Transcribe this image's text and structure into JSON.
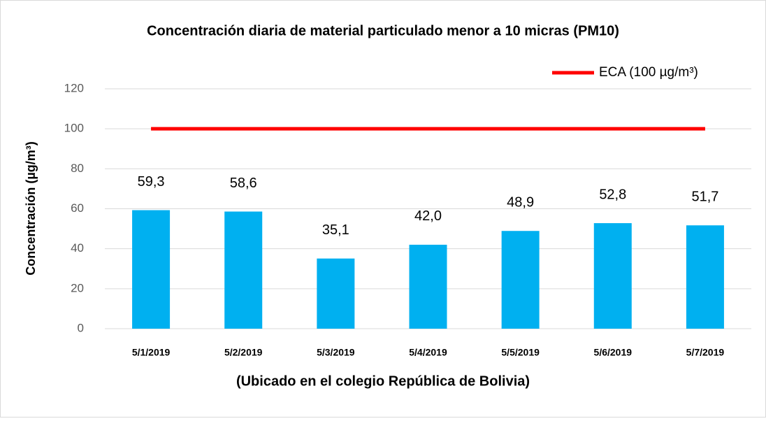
{
  "chart_data": {
    "type": "bar",
    "title": "Concentración diaria de material particulado menor a 10 micras (PM10)",
    "x_label": "(Ubicado en el colegio República de Bolivia)",
    "y_label": "Concentración (µg/m³)",
    "categories": [
      "5/1/2019",
      "5/2/2019",
      "5/3/2019",
      "5/4/2019",
      "5/5/2019",
      "5/6/2019",
      "5/7/2019"
    ],
    "series": [
      {
        "type": "bar",
        "color": "#00b0f0",
        "values": [
          59.3,
          58.6,
          35.1,
          42.0,
          48.9,
          52.8,
          51.7
        ],
        "value_labels": [
          "59,3",
          "58,6",
          "35,1",
          "42,0",
          "48,9",
          "52,8",
          "51,7"
        ]
      },
      {
        "type": "line",
        "name": "ECA (100 µg/m³)",
        "color": "#ff0000",
        "values": [
          100,
          100,
          100,
          100,
          100,
          100,
          100
        ]
      }
    ],
    "ylim": [
      0,
      120
    ],
    "yticks": [
      0,
      20,
      40,
      60,
      80,
      100,
      120
    ],
    "grid": true,
    "legend": "top-right"
  }
}
